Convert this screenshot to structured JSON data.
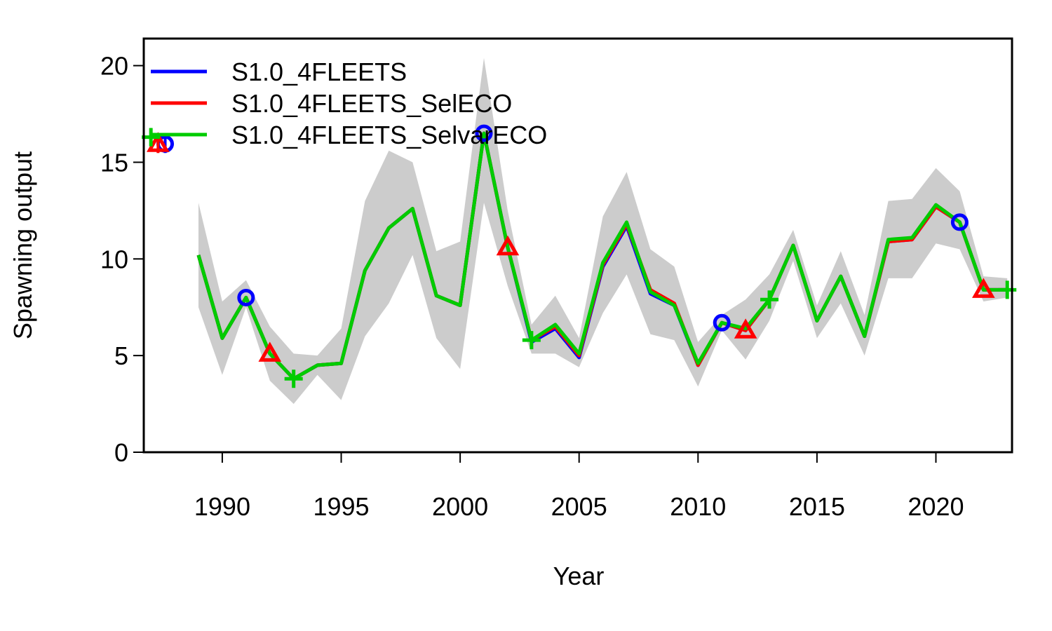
{
  "chart_data": {
    "type": "line",
    "xlabel": "Year",
    "ylabel": "Spawning output",
    "xlim": [
      1986.7,
      2023.2
    ],
    "ylim": [
      0,
      21.4
    ],
    "x_ticks": [
      1990,
      1995,
      2000,
      2005,
      2010,
      2015,
      2020
    ],
    "y_ticks": [
      0,
      5,
      10,
      15,
      20
    ],
    "legend_position": "top-left",
    "virgin_x": {
      "S1.0_4FLEETS": 1987.6,
      "S1.0_4FLEETS_SelECO": 1987.3,
      "S1.0_4FLEETS_SelvarECO": 1987.0
    },
    "years": [
      1989,
      1990,
      1991,
      1992,
      1993,
      1994,
      1995,
      1996,
      1997,
      1998,
      1999,
      2000,
      2001,
      2002,
      2003,
      2004,
      2005,
      2006,
      2007,
      2008,
      2009,
      2010,
      2011,
      2012,
      2013,
      2014,
      2015,
      2016,
      2017,
      2018,
      2019,
      2020,
      2021,
      2022,
      2023
    ],
    "interval_lower": [
      7.5,
      4.0,
      7.5,
      3.7,
      2.5,
      4.0,
      2.7,
      6.0,
      7.7,
      10.2,
      5.9,
      4.3,
      12.9,
      8.6,
      5.1,
      5.1,
      4.4,
      7.2,
      9.2,
      6.1,
      5.8,
      3.4,
      6.3,
      4.8,
      6.8,
      9.9,
      5.9,
      7.7,
      5.0,
      9.0,
      9.0,
      10.8,
      10.5,
      7.8,
      8.0
    ],
    "interval_upper": [
      12.9,
      7.8,
      8.9,
      6.5,
      5.1,
      5.0,
      6.4,
      13.0,
      15.6,
      15.0,
      10.4,
      10.9,
      20.4,
      12.5,
      6.6,
      8.1,
      5.9,
      12.2,
      14.5,
      10.5,
      9.6,
      5.7,
      7.1,
      7.9,
      9.2,
      11.5,
      7.6,
      10.4,
      7.1,
      13.0,
      13.1,
      14.7,
      13.5,
      9.1,
      9.0
    ],
    "series": [
      {
        "name": "S1.0_4FLEETS",
        "color": "#0000ff",
        "marker": "circle",
        "marker_years": [
          1991,
          2001,
          2011,
          2021
        ],
        "virgin": 15.95,
        "values": [
          10.2,
          5.9,
          8.0,
          5.1,
          3.8,
          4.5,
          4.6,
          9.4,
          11.6,
          12.6,
          8.1,
          7.6,
          16.5,
          10.6,
          5.7,
          6.4,
          4.9,
          9.6,
          11.7,
          8.2,
          7.6,
          4.5,
          6.7,
          6.3,
          7.9,
          10.7,
          6.8,
          9.1,
          6.0,
          10.9,
          11.0,
          12.7,
          11.9,
          8.4,
          8.4
        ]
      },
      {
        "name": "S1.0_4FLEETS_SelECO",
        "color": "#ff0000",
        "marker": "triangle",
        "marker_years": [
          1992,
          2002,
          2012,
          2022
        ],
        "virgin": 15.95,
        "values": [
          10.2,
          5.9,
          8.0,
          5.1,
          3.8,
          4.5,
          4.6,
          9.4,
          11.6,
          12.6,
          8.1,
          7.6,
          16.5,
          10.6,
          5.8,
          6.5,
          5.0,
          9.7,
          11.8,
          8.4,
          7.7,
          4.5,
          6.7,
          6.3,
          7.9,
          10.7,
          6.8,
          9.1,
          6.0,
          10.9,
          11.0,
          12.7,
          11.9,
          8.4,
          8.4
        ]
      },
      {
        "name": "S1.0_4FLEETS_SelvarECO",
        "color": "#00cc00",
        "marker": "plus",
        "marker_years": [
          1993,
          2003,
          2013,
          2023
        ],
        "virgin": 16.3,
        "values": [
          10.2,
          5.9,
          8.0,
          5.1,
          3.8,
          4.5,
          4.6,
          9.4,
          11.6,
          12.6,
          8.1,
          7.6,
          16.5,
          10.6,
          5.8,
          6.6,
          5.1,
          9.8,
          11.9,
          8.3,
          7.6,
          4.6,
          6.7,
          6.4,
          7.9,
          10.7,
          6.8,
          9.1,
          6.0,
          11.0,
          11.1,
          12.8,
          11.9,
          8.4,
          8.4
        ]
      }
    ]
  }
}
